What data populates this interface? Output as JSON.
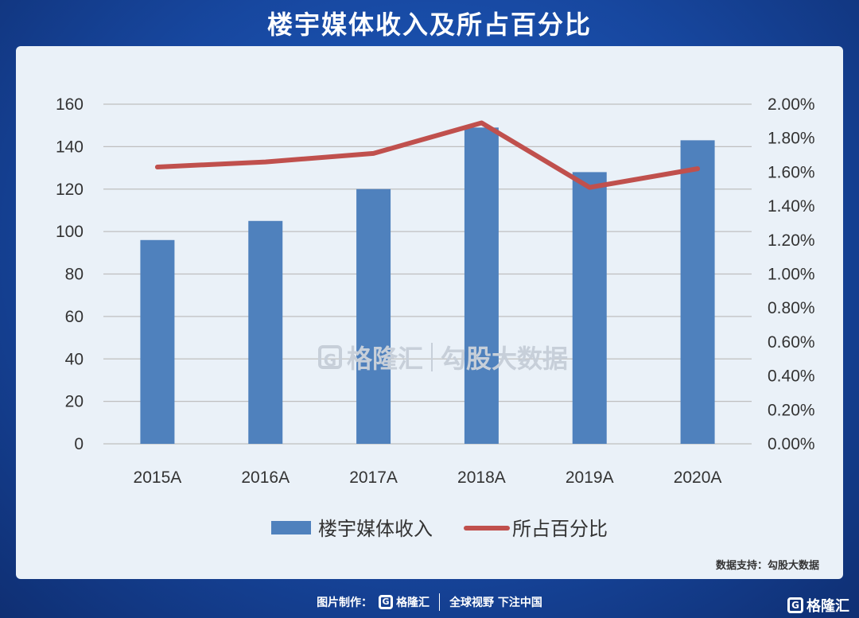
{
  "title": "楼宇媒体收入及所占百分比",
  "watermark": {
    "logo_glyph": "G",
    "brand": "格隆汇",
    "product": "勾股大数据"
  },
  "source_label": "数据支持：勾股大数据",
  "footer": {
    "made_by": "图片制作：",
    "logo_glyph": "G",
    "brand": "格隆汇",
    "slogan": "全球视野 下注中国"
  },
  "corner_brand": {
    "logo_glyph": "G",
    "brand": "格隆汇"
  },
  "colors": {
    "bar": "#4f81bd",
    "line": "#c0504d",
    "grid": "#bfbfbf"
  },
  "chart_data": {
    "type": "bar",
    "categories": [
      "2015A",
      "2016A",
      "2017A",
      "2018A",
      "2019A",
      "2020A"
    ],
    "series": [
      {
        "name": "楼宇媒体收入",
        "type": "bar",
        "axis": "left",
        "values": [
          96,
          105,
          120,
          149,
          128,
          143
        ]
      },
      {
        "name": "所占百分比",
        "type": "line",
        "axis": "right",
        "values": [
          1.63,
          1.66,
          1.71,
          1.89,
          1.51,
          1.62
        ]
      }
    ],
    "ylim": [
      0,
      160
    ],
    "yticks": [
      "0",
      "20",
      "40",
      "60",
      "80",
      "100",
      "120",
      "140",
      "160"
    ],
    "y2lim": [
      0,
      2.0
    ],
    "y2ticks": [
      "0.00%",
      "0.20%",
      "0.40%",
      "0.60%",
      "0.80%",
      "1.00%",
      "1.20%",
      "1.40%",
      "1.60%",
      "1.80%",
      "2.00%"
    ],
    "grid": true,
    "legend": "bottom"
  }
}
